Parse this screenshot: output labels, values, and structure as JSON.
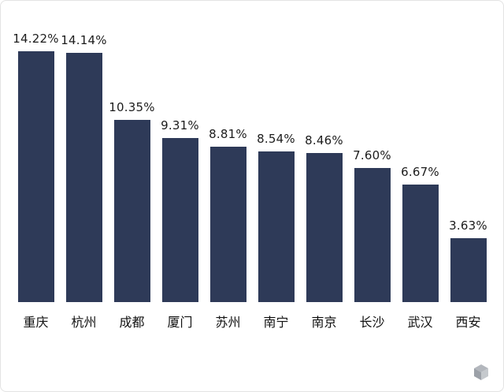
{
  "chart_data": {
    "type": "bar",
    "categories": [
      "重庆",
      "杭州",
      "成都",
      "厦门",
      "苏州",
      "南宁",
      "南京",
      "长沙",
      "武汉",
      "西安"
    ],
    "values": [
      14.22,
      14.14,
      10.35,
      9.31,
      8.81,
      8.54,
      8.46,
      7.6,
      6.67,
      3.63
    ],
    "value_labels": [
      "14.22%",
      "14.14%",
      "10.35%",
      "9.31%",
      "8.81%",
      "8.54%",
      "8.46%",
      "7.60%",
      "6.67%",
      "3.63%"
    ],
    "title": "",
    "xlabel": "",
    "ylabel": "",
    "ylim": [
      0,
      14.22
    ],
    "grid": false,
    "legend": "none",
    "bar_color": "#2e3a58",
    "label_color": "#1c1c1c"
  },
  "watermark": {
    "icon": "cube-logo-icon",
    "color": "#8d939c"
  }
}
